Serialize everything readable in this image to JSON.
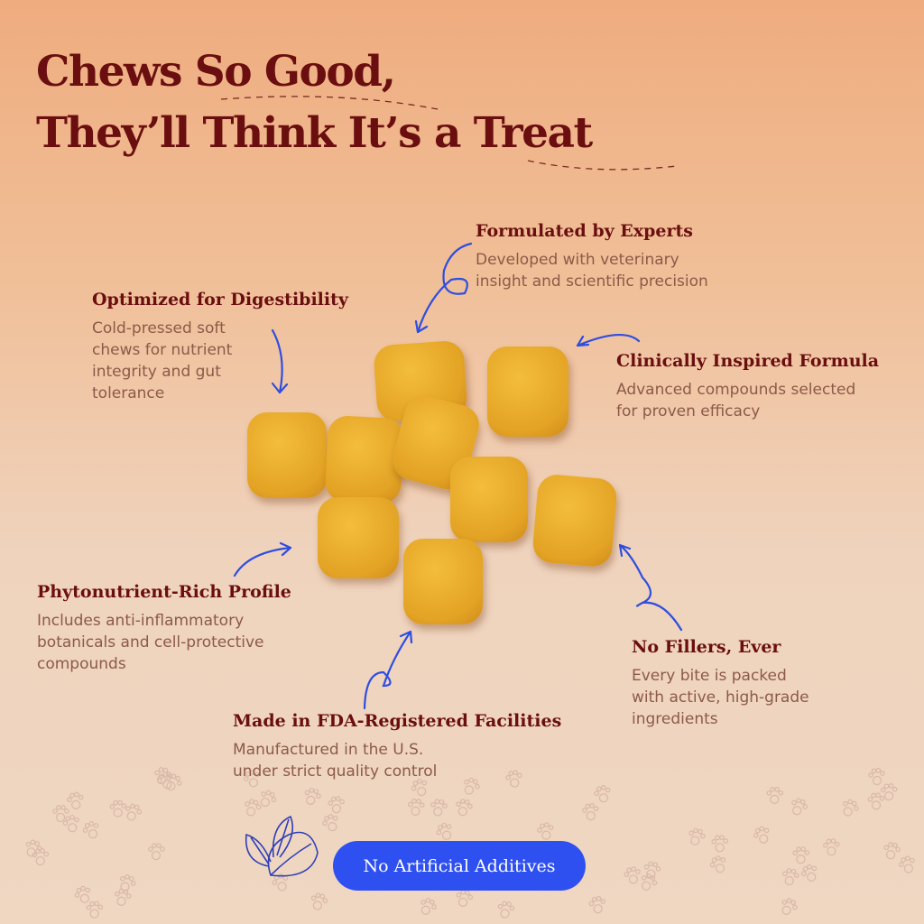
{
  "headline": {
    "line1": "Chews So Good,",
    "line2": "They’ll Think It’s a Treat"
  },
  "features": [
    {
      "title": "Formulated by Experts",
      "description": "Developed with veterinary\ninsight and scientific precision"
    },
    {
      "title": "Optimized for Digestibility",
      "description": "Cold-pressed soft\nchews for nutrient\nintegrity and gut\ntolerance"
    },
    {
      "title": "Clinically Inspired Formula",
      "description": "Advanced compounds selected\nfor proven efficacy"
    },
    {
      "title": "Phytonutrient-Rich Profile",
      "description": "Includes anti-inflammatory\nbotanicals and cell-protective\ncompounds"
    },
    {
      "title": "No Fillers, Ever",
      "description": "Every bite is packed\nwith active, high-grade\ningredients"
    },
    {
      "title": "Made in FDA-Registered Facilities",
      "description": "Manufactured in the U.S.\nunder strict quality control"
    }
  ],
  "badge": {
    "label": "No Artificial Additives",
    "icon": "leaf-icon"
  },
  "colors": {
    "headline": "#6a0e10",
    "accent": "#2f50f0",
    "chew": "#e8a62a"
  }
}
